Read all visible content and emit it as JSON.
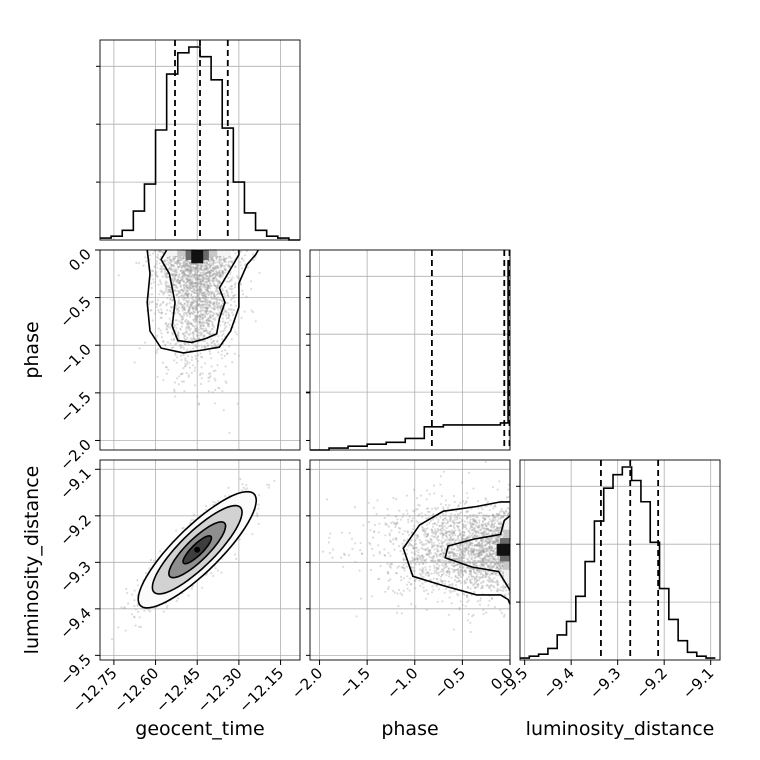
{
  "chart_data": {
    "type": "corner",
    "parameters": [
      "geocent_time",
      "phase",
      "luminosity_distance"
    ],
    "axis_labels": {
      "geocent_time": "geocent_time",
      "phase": "phase",
      "luminosity_distance": "luminosity_distance"
    },
    "ranges": {
      "geocent_time": [
        -12.8,
        -12.08
      ],
      "phase": [
        -2.1,
        0.0
      ],
      "luminosity_distance": [
        -9.51,
        -9.08
      ]
    },
    "ticks": {
      "geocent_time": [
        -12.75,
        -12.6,
        -12.45,
        -12.3,
        -12.15
      ],
      "phase": [
        -2.0,
        -1.5,
        -1.0,
        -0.5,
        0.0
      ],
      "luminosity_distance": [
        -9.5,
        -9.4,
        -9.3,
        -9.2,
        -9.1
      ]
    },
    "tick_labels": {
      "geocent_time": [
        "−12.75",
        "−12.60",
        "−12.45",
        "−12.30",
        "−12.15"
      ],
      "phase": [
        "−2.0",
        "−1.5",
        "−1.0",
        "−0.5",
        "0.0"
      ],
      "luminosity_distance": [
        "−9.5",
        "−9.4",
        "−9.3",
        "−9.2",
        "−9.1"
      ]
    },
    "quantiles": {
      "geocent_time": [
        -12.53,
        -12.44,
        -12.34
      ],
      "phase": [
        -0.82,
        -0.06,
        -0.005
      ],
      "luminosity_distance": [
        -9.336,
        -9.273,
        -9.213
      ]
    },
    "histograms": {
      "geocent_time": {
        "edges": [
          -12.8,
          -12.76,
          -12.72,
          -12.68,
          -12.64,
          -12.6,
          -12.56,
          -12.52,
          -12.48,
          -12.44,
          -12.4,
          -12.36,
          -12.32,
          -12.28,
          -12.24,
          -12.2,
          -12.16,
          -12.12,
          -12.08
        ],
        "counts": [
          0.01,
          0.02,
          0.05,
          0.15,
          0.29,
          0.57,
          0.86,
          0.97,
          1.0,
          0.95,
          0.83,
          0.58,
          0.3,
          0.14,
          0.05,
          0.02,
          0.01,
          0.0
        ]
      },
      "phase": {
        "edges": [
          -2.1,
          -1.9,
          -1.7,
          -1.5,
          -1.3,
          -1.1,
          -0.9,
          -0.7,
          -0.5,
          -0.3,
          -0.1,
          -0.02,
          0.0
        ],
        "counts": [
          0.0,
          0.01,
          0.02,
          0.03,
          0.04,
          0.06,
          0.12,
          0.13,
          0.13,
          0.13,
          0.14,
          0.98
        ]
      },
      "luminosity_distance": {
        "edges": [
          -9.51,
          -9.49,
          -9.47,
          -9.45,
          -9.43,
          -9.41,
          -9.39,
          -9.37,
          -9.35,
          -9.33,
          -9.31,
          -9.29,
          -9.27,
          -9.25,
          -9.23,
          -9.21,
          -9.19,
          -9.17,
          -9.15,
          -9.13,
          -9.11,
          -9.09
        ],
        "counts": [
          0.01,
          0.02,
          0.03,
          0.06,
          0.13,
          0.2,
          0.33,
          0.51,
          0.72,
          0.89,
          0.96,
          1.0,
          0.93,
          0.82,
          0.61,
          0.37,
          0.21,
          0.1,
          0.04,
          0.02,
          0.01
        ]
      }
    },
    "joint_distributions": [
      {
        "x": "geocent_time",
        "y": "phase",
        "mean": [
          -12.45,
          -0.22
        ],
        "std": [
          0.07,
          0.35
        ],
        "contour_levels": [
          [
            [
              -12.56,
              0.0
            ],
            [
              -12.58,
              -0.1
            ],
            [
              -12.55,
              -0.25
            ],
            [
              -12.53,
              -0.55
            ],
            [
              -12.54,
              -0.8
            ],
            [
              -12.52,
              -0.95
            ],
            [
              -12.47,
              -0.97
            ],
            [
              -12.42,
              -0.93
            ],
            [
              -12.38,
              -0.88
            ],
            [
              -12.37,
              -0.72
            ],
            [
              -12.35,
              -0.55
            ],
            [
              -12.37,
              -0.4
            ],
            [
              -12.33,
              -0.2
            ],
            [
              -12.3,
              -0.05
            ],
            [
              -12.3,
              0.0
            ]
          ],
          [
            [
              -12.63,
              0.0
            ],
            [
              -12.62,
              -0.25
            ],
            [
              -12.63,
              -0.55
            ],
            [
              -12.62,
              -0.85
            ],
            [
              -12.58,
              -1.03
            ],
            [
              -12.5,
              -1.08
            ],
            [
              -12.43,
              -1.05
            ],
            [
              -12.37,
              -1.02
            ],
            [
              -12.33,
              -0.85
            ],
            [
              -12.3,
              -0.6
            ],
            [
              -12.3,
              -0.35
            ],
            [
              -12.27,
              -0.15
            ],
            [
              -12.24,
              -0.05
            ],
            [
              -12.23,
              0.0
            ]
          ]
        ]
      },
      {
        "x": "geocent_time",
        "y": "luminosity_distance",
        "mean": [
          -12.45,
          -9.273
        ],
        "std": [
          0.085,
          0.05
        ],
        "correlation": 0.85,
        "contour_sigmas": [
          0.6,
          1.2,
          1.9,
          2.5
        ]
      },
      {
        "x": "phase",
        "y": "luminosity_distance",
        "mean": [
          -0.22,
          -9.273
        ],
        "std": [
          0.35,
          0.05
        ],
        "contour_levels": [
          [
            [
              0.0,
              -9.2
            ],
            [
              -0.06,
              -9.21
            ],
            [
              -0.1,
              -9.24
            ],
            [
              -0.38,
              -9.25
            ],
            [
              -0.65,
              -9.265
            ],
            [
              -0.68,
              -9.29
            ],
            [
              -0.4,
              -9.31
            ],
            [
              -0.12,
              -9.32
            ],
            [
              -0.03,
              -9.35
            ],
            [
              0.0,
              -9.36
            ]
          ],
          [
            [
              0.0,
              -9.17
            ],
            [
              -0.1,
              -9.17
            ],
            [
              -0.35,
              -9.18
            ],
            [
              -0.7,
              -9.19
            ],
            [
              -0.95,
              -9.22
            ],
            [
              -1.12,
              -9.27
            ],
            [
              -1.02,
              -9.33
            ],
            [
              -0.7,
              -9.35
            ],
            [
              -0.35,
              -9.37
            ],
            [
              -0.1,
              -9.37
            ],
            [
              -0.02,
              -9.38
            ],
            [
              0.0,
              -9.39
            ]
          ]
        ]
      }
    ]
  }
}
